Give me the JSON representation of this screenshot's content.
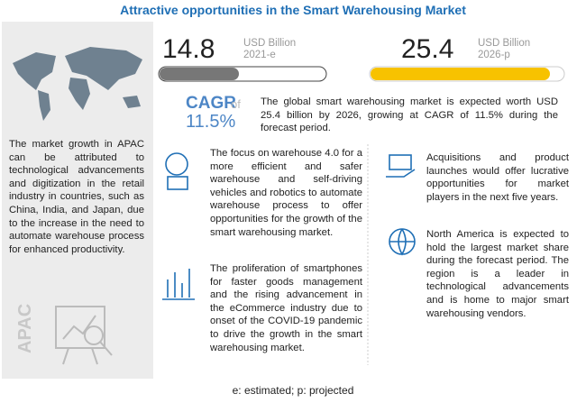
{
  "header": {
    "title": "Attractive opportunities in the Smart Warehousing Market"
  },
  "metrics": [
    {
      "value": 14.8,
      "unit": "USD Billion",
      "year": "2021-e"
    },
    {
      "value": 25.4,
      "unit": "USD Billion",
      "year": "2026-p"
    }
  ],
  "cagr": {
    "label": "CAGR",
    "of": "of",
    "value": "11.5%"
  },
  "summary": "The global smart warehousing market is expected worth USD 25.4 billion by 2026, growing at CAGR of 11.5% during the forecast period.",
  "left_panel": {
    "text": "The market growth in APAC can be attributed to technological advancements and digitization in the retail industry in countries, such as China, India, and Japan, due to the increase in the need to automate warehouse process for enhanced productivity.",
    "region": "APAC"
  },
  "points": [
    "The focus on warehouse 4.0 for a more efficient and safer warehouse and self-driving vehicles and robotics to automate warehouse process to offer opportunities for the growth of the smart warehousing market.",
    "The proliferation of smartphones for faster goods management and the rising advancement in the eCommerce industry due to onset of the COVID-19 pandemic to drive the growth in the smart warehousing market.",
    "Acquisitions and product launches would offer lucrative opportunities for market players in the next five years.",
    "North America is expected to hold the largest market share during the forecast period. The region is a leader in technological advancements and is home to major smart warehousing vendors."
  ],
  "footnote": "e: estimated; p: projected"
}
